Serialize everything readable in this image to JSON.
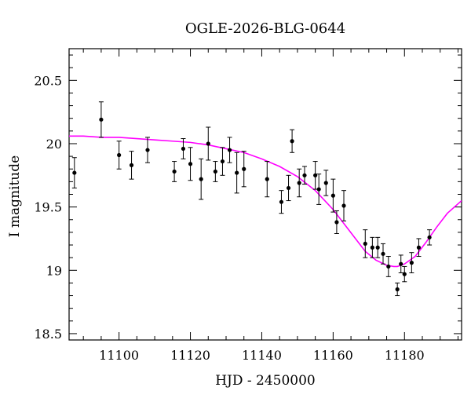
{
  "chart_data": {
    "type": "scatter",
    "title": "OGLE-2026-BLG-0644",
    "xlabel": "HJD - 2450000",
    "ylabel": "I magnitude",
    "xlim": [
      11086,
      11196
    ],
    "ylim": [
      20.75,
      18.45
    ],
    "y_inverted": true,
    "grid": false,
    "x_ticks": [
      11100,
      11120,
      11140,
      11160,
      11180
    ],
    "y_ticks": [
      18.5,
      19,
      19.5,
      20,
      20.5
    ],
    "x_tick_labels": [
      "11100",
      "11120",
      "11140",
      "11160",
      "11180"
    ],
    "y_tick_labels": [
      "18.5",
      "19",
      "19.5",
      "20",
      "20.5"
    ],
    "colors": {
      "points": "#000000",
      "model": "#ff00ff",
      "axes": "#000000"
    },
    "points": [
      {
        "x": 11087.5,
        "y": 19.77,
        "err": 0.12
      },
      {
        "x": 11095.0,
        "y": 20.19,
        "err": 0.14
      },
      {
        "x": 11100.0,
        "y": 19.91,
        "err": 0.11
      },
      {
        "x": 11103.5,
        "y": 19.83,
        "err": 0.11
      },
      {
        "x": 11108.0,
        "y": 19.95,
        "err": 0.1
      },
      {
        "x": 11115.5,
        "y": 19.78,
        "err": 0.08
      },
      {
        "x": 11118.0,
        "y": 19.96,
        "err": 0.08
      },
      {
        "x": 11120.0,
        "y": 19.84,
        "err": 0.13
      },
      {
        "x": 11123.0,
        "y": 19.72,
        "err": 0.16
      },
      {
        "x": 11125.0,
        "y": 20.0,
        "err": 0.13
      },
      {
        "x": 11127.0,
        "y": 19.78,
        "err": 0.08
      },
      {
        "x": 11129.0,
        "y": 19.86,
        "err": 0.11
      },
      {
        "x": 11131.0,
        "y": 19.95,
        "err": 0.1
      },
      {
        "x": 11133.0,
        "y": 19.77,
        "err": 0.16
      },
      {
        "x": 11135.0,
        "y": 19.8,
        "err": 0.14
      },
      {
        "x": 11141.5,
        "y": 19.72,
        "err": 0.14
      },
      {
        "x": 11145.5,
        "y": 19.54,
        "err": 0.09
      },
      {
        "x": 11147.5,
        "y": 19.65,
        "err": 0.1
      },
      {
        "x": 11148.5,
        "y": 20.02,
        "err": 0.09
      },
      {
        "x": 11150.5,
        "y": 19.69,
        "err": 0.11
      },
      {
        "x": 11152.0,
        "y": 19.75,
        "err": 0.07
      },
      {
        "x": 11155.0,
        "y": 19.75,
        "err": 0.11
      },
      {
        "x": 11156.0,
        "y": 19.64,
        "err": 0.12
      },
      {
        "x": 11158.0,
        "y": 19.69,
        "err": 0.1
      },
      {
        "x": 11160.0,
        "y": 19.59,
        "err": 0.13
      },
      {
        "x": 11161.0,
        "y": 19.38,
        "err": 0.09
      },
      {
        "x": 11163.0,
        "y": 19.51,
        "err": 0.12
      },
      {
        "x": 11169.0,
        "y": 19.21,
        "err": 0.11
      },
      {
        "x": 11171.0,
        "y": 19.18,
        "err": 0.08
      },
      {
        "x": 11172.5,
        "y": 19.18,
        "err": 0.08
      },
      {
        "x": 11174.0,
        "y": 19.13,
        "err": 0.08
      },
      {
        "x": 11175.5,
        "y": 19.03,
        "err": 0.08
      },
      {
        "x": 11178.0,
        "y": 18.85,
        "err": 0.05
      },
      {
        "x": 11179.0,
        "y": 19.05,
        "err": 0.07
      },
      {
        "x": 11180.0,
        "y": 18.97,
        "err": 0.06
      },
      {
        "x": 11182.0,
        "y": 19.06,
        "err": 0.08
      },
      {
        "x": 11184.0,
        "y": 19.18,
        "err": 0.07
      },
      {
        "x": 11187.0,
        "y": 19.26,
        "err": 0.06
      }
    ],
    "model": {
      "x": [
        11086,
        11090,
        11095,
        11100,
        11105,
        11110,
        11115,
        11120,
        11125,
        11130,
        11135,
        11140,
        11145,
        11150,
        11155,
        11160,
        11163,
        11166,
        11169,
        11172,
        11175,
        11177,
        11178,
        11180,
        11183,
        11186,
        11189,
        11192,
        11196
      ],
      "y": [
        20.06,
        20.06,
        20.05,
        20.05,
        20.04,
        20.03,
        20.02,
        20.01,
        19.99,
        19.96,
        19.93,
        19.88,
        19.82,
        19.74,
        19.63,
        19.48,
        19.37,
        19.26,
        19.15,
        19.08,
        19.04,
        19.03,
        19.03,
        19.05,
        19.11,
        19.22,
        19.34,
        19.45,
        19.55
      ]
    }
  }
}
